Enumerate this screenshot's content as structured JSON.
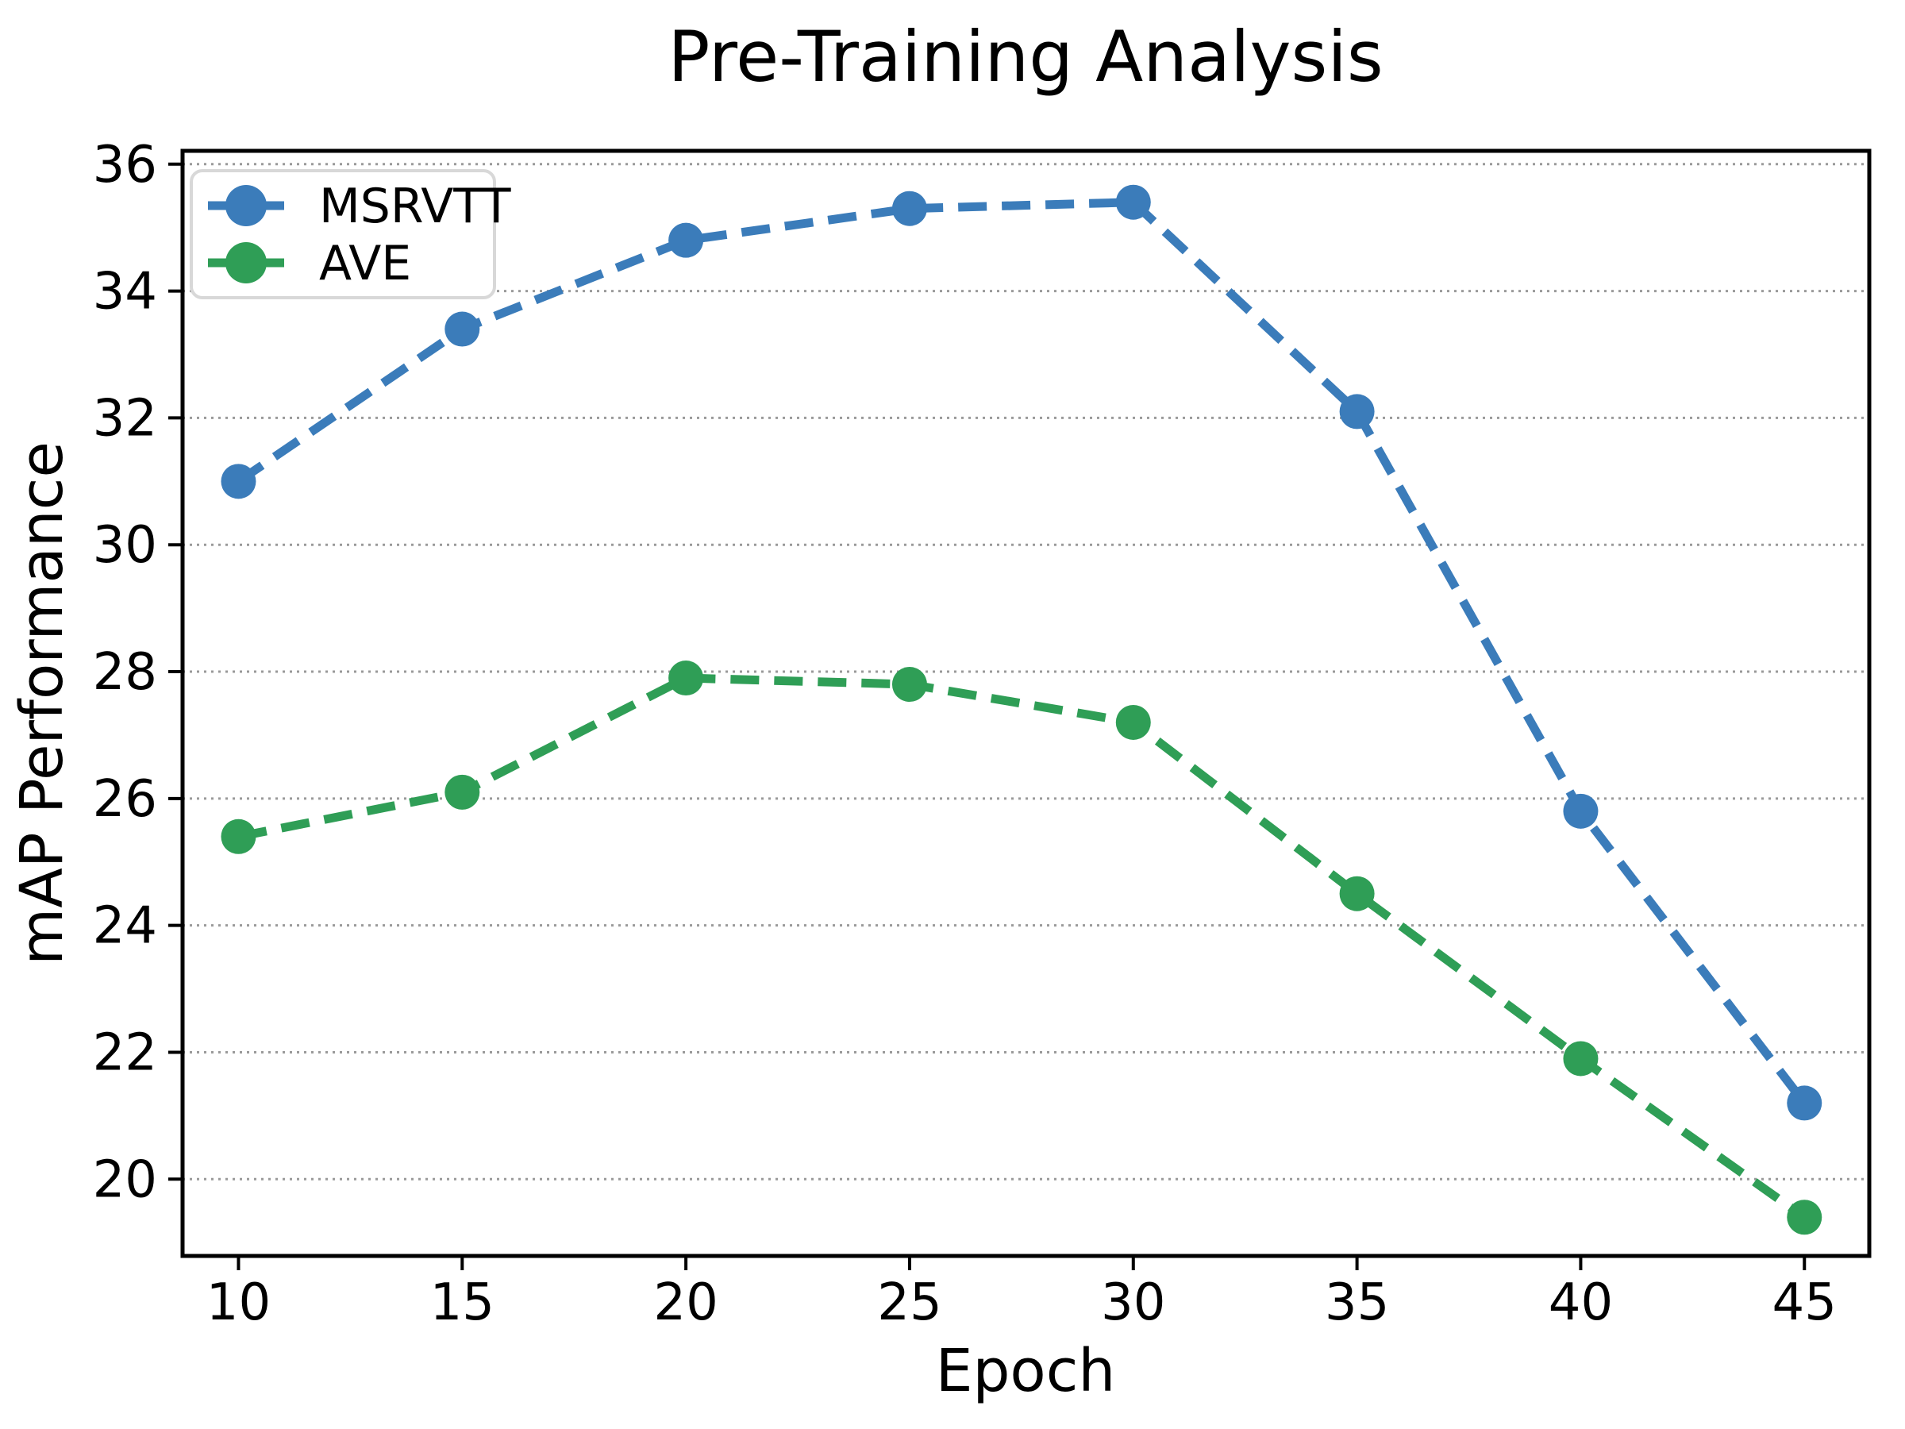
{
  "chart_data": {
    "type": "line",
    "title": "Pre-Training Analysis",
    "xlabel": "Epoch",
    "ylabel": "mAP Performance",
    "x": [
      10,
      15,
      20,
      25,
      30,
      35,
      40,
      45
    ],
    "series": [
      {
        "name": "MSRVTT",
        "color": "#3b7cba",
        "values": [
          31.0,
          33.4,
          34.8,
          35.3,
          35.4,
          32.1,
          25.8,
          21.2
        ]
      },
      {
        "name": "AVE",
        "color": "#2f9e56",
        "values": [
          25.4,
          26.1,
          27.9,
          27.8,
          27.2,
          24.5,
          21.9,
          19.4
        ]
      }
    ],
    "xticks": [
      10,
      15,
      20,
      25,
      30,
      35,
      40,
      45
    ],
    "yticks": [
      20,
      22,
      24,
      26,
      28,
      30,
      32,
      34,
      36
    ],
    "xlim": [
      8.75,
      46.45
    ],
    "ylim": [
      18.79,
      36.21
    ],
    "grid": "horizontal-dotted",
    "grid_color": "#9a9a9a",
    "spine_color": "#000000",
    "line_style": "dashed",
    "marker": "circle",
    "legend_position": "upper-left"
  }
}
